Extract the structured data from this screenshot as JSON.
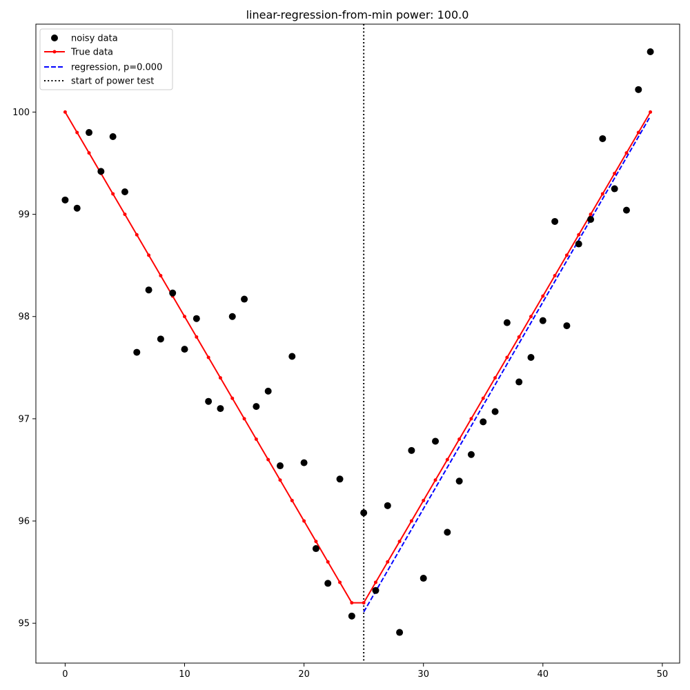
{
  "chart_data": {
    "type": "line",
    "title": "linear-regression-from-min power: 100.0",
    "xlabel": "",
    "ylabel": "",
    "xlim": [
      -2.45,
      51.45
    ],
    "ylim": [
      94.61,
      100.86
    ],
    "xticks": [
      0,
      10,
      20,
      30,
      40,
      50
    ],
    "yticks": [
      95,
      96,
      97,
      98,
      99,
      100
    ],
    "grid": false,
    "legend_position": "top-left",
    "series": [
      {
        "name": "noisy data",
        "kind": "scatter",
        "color": "#000000",
        "x": [
          0,
          1,
          2,
          3,
          4,
          5,
          6,
          7,
          8,
          9,
          10,
          11,
          12,
          13,
          14,
          15,
          16,
          17,
          18,
          19,
          20,
          21,
          22,
          23,
          24,
          25,
          26,
          27,
          28,
          29,
          30,
          31,
          32,
          33,
          34,
          35,
          36,
          37,
          38,
          39,
          40,
          41,
          42,
          43,
          44,
          45,
          46,
          47,
          48,
          49
        ],
        "y": [
          99.14,
          99.06,
          99.8,
          99.42,
          99.76,
          99.22,
          97.65,
          98.26,
          97.78,
          98.23,
          97.68,
          97.98,
          97.17,
          97.1,
          98.0,
          98.17,
          97.12,
          97.27,
          96.54,
          97.61,
          96.57,
          95.73,
          95.39,
          96.41,
          95.07,
          96.08,
          95.32,
          96.15,
          94.91,
          96.69,
          95.44,
          96.78,
          95.89,
          96.39,
          96.65,
          96.97,
          97.07,
          97.94,
          97.36,
          97.6,
          97.96,
          98.93,
          97.91,
          98.71,
          98.95,
          99.74,
          99.25,
          99.04,
          100.22,
          100.59
        ]
      },
      {
        "name": "True data",
        "kind": "line-marker",
        "color": "#ff0000",
        "x": [
          0,
          1,
          2,
          3,
          4,
          5,
          6,
          7,
          8,
          9,
          10,
          11,
          12,
          13,
          14,
          15,
          16,
          17,
          18,
          19,
          20,
          21,
          22,
          23,
          24,
          25,
          26,
          27,
          28,
          29,
          30,
          31,
          32,
          33,
          34,
          35,
          36,
          37,
          38,
          39,
          40,
          41,
          42,
          43,
          44,
          45,
          46,
          47,
          48,
          49
        ],
        "y": [
          100.0,
          99.8,
          99.6,
          99.4,
          99.2,
          99.0,
          98.8,
          98.6,
          98.4,
          98.2,
          98.0,
          97.8,
          97.6,
          97.4,
          97.2,
          97.0,
          96.8,
          96.6,
          96.4,
          96.2,
          96.0,
          95.8,
          95.6,
          95.4,
          95.2,
          95.2,
          95.4,
          95.6,
          95.8,
          96.0,
          96.2,
          96.4,
          96.6,
          96.8,
          97.0,
          97.2,
          97.4,
          97.6,
          97.8,
          98.0,
          98.2,
          98.4,
          98.6,
          98.8,
          99.0,
          99.2,
          99.4,
          99.6,
          99.8,
          100.0
        ]
      },
      {
        "name": "regression, p=0.000",
        "kind": "dashed-line",
        "color": "#0000ff",
        "x": [
          25,
          49
        ],
        "y": [
          95.11,
          99.96
        ]
      },
      {
        "name": "start of power test",
        "kind": "vline-dotted",
        "color": "#000000",
        "x": [
          25
        ]
      }
    ]
  }
}
